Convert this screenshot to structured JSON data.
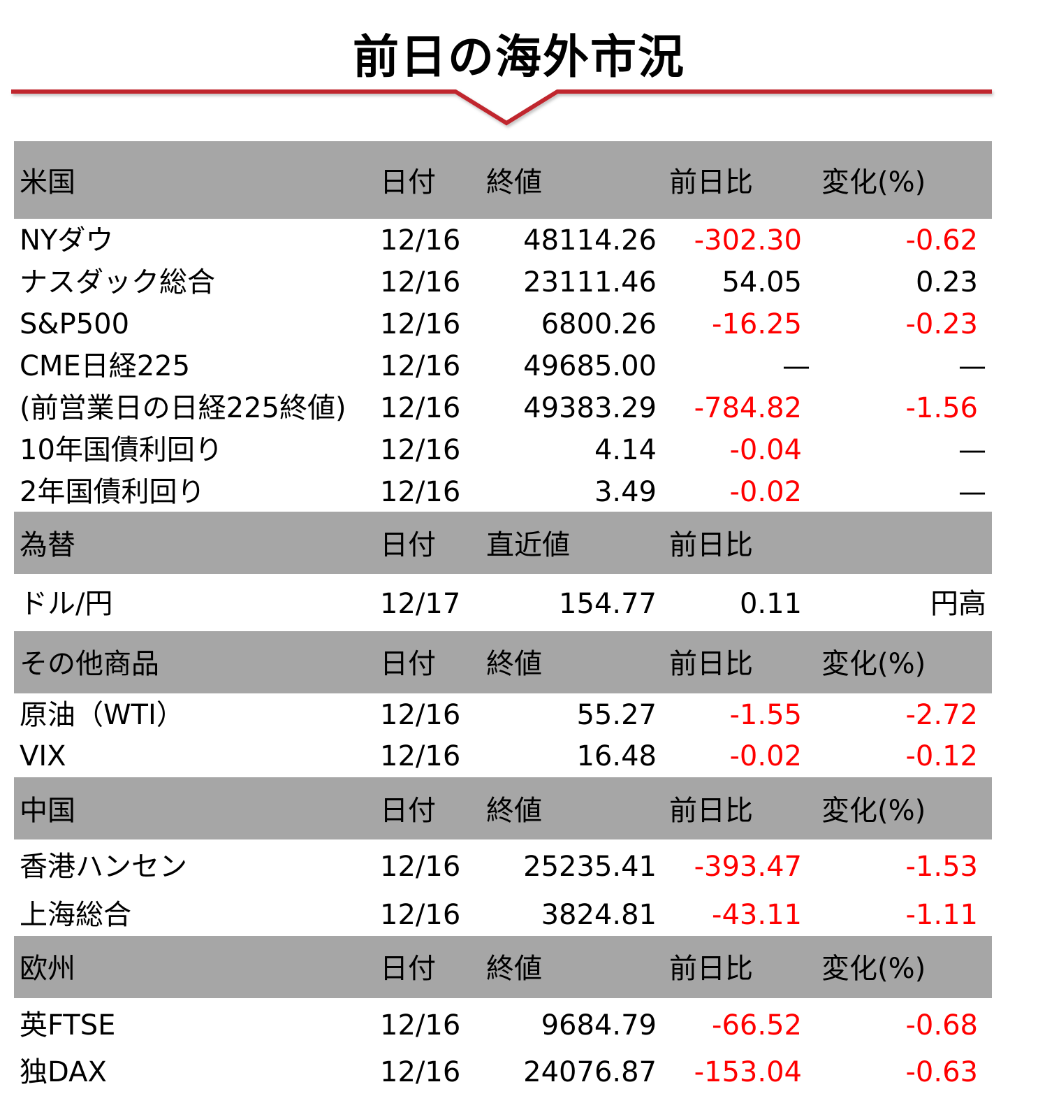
{
  "title": "前日の海外市況",
  "accent_color": "#c0282d",
  "negative_color": "#ff0000",
  "header_bg": "#a6a6a6",
  "sections": {
    "us": {
      "header": {
        "name": "米国",
        "date": "日付",
        "value": "終値",
        "change": "前日比",
        "pct": "変化(%)"
      },
      "rows": [
        {
          "name": "NYダウ",
          "date": "12/16",
          "value": "48114.26",
          "change": "-302.30",
          "pct": "-0.62"
        },
        {
          "name": "ナスダック総合",
          "date": "12/16",
          "value": "23111.46",
          "change": "54.05",
          "pct": "0.23"
        },
        {
          "name": "S&P500",
          "date": "12/16",
          "value": "6800.26",
          "change": "-16.25",
          "pct": "-0.23"
        },
        {
          "name": "CME日経225",
          "date": "12/16",
          "value": "49685.00",
          "change": "—",
          "pct": "—"
        },
        {
          "name": "(前営業日の日経225終値)",
          "date": "12/16",
          "value": "49383.29",
          "change": "-784.82",
          "pct": "-1.56"
        },
        {
          "name": "10年国債利回り",
          "date": "12/16",
          "value": "4.14",
          "change": "-0.04",
          "pct": "—"
        },
        {
          "name": "2年国債利回り",
          "date": "12/16",
          "value": "3.49",
          "change": "-0.02",
          "pct": "—"
        }
      ]
    },
    "fx": {
      "header": {
        "name": "為替",
        "date": "日付",
        "value": "直近値",
        "change": "前日比"
      },
      "rows": [
        {
          "name": "ドル/円",
          "date": "12/17",
          "value": "154.77",
          "change": "0.11",
          "pct": "円高"
        }
      ]
    },
    "commodities": {
      "header": {
        "name": "その他商品",
        "date": "日付",
        "value": "終値",
        "change": "前日比",
        "pct": "変化(%)"
      },
      "rows": [
        {
          "name": "原油（WTI）",
          "date": "12/16",
          "value": "55.27",
          "change": "-1.55",
          "pct": "-2.72"
        },
        {
          "name": "VIX",
          "date": "12/16",
          "value": "16.48",
          "change": "-0.02",
          "pct": "-0.12"
        }
      ]
    },
    "china": {
      "header": {
        "name": "中国",
        "date": "日付",
        "value": "終値",
        "change": "前日比",
        "pct": "変化(%)"
      },
      "rows": [
        {
          "name": "香港ハンセン",
          "date": "12/16",
          "value": "25235.41",
          "change": "-393.47",
          "pct": "-1.53"
        },
        {
          "name": "上海総合",
          "date": "12/16",
          "value": "3824.81",
          "change": "-43.11",
          "pct": "-1.11"
        }
      ]
    },
    "europe": {
      "header": {
        "name": "欧州",
        "date": "日付",
        "value": "終値",
        "change": "前日比",
        "pct": "変化(%)"
      },
      "rows": [
        {
          "name": "英FTSE",
          "date": "12/16",
          "value": "9684.79",
          "change": "-66.52",
          "pct": "-0.68"
        },
        {
          "name": "独DAX",
          "date": "12/16",
          "value": "24076.87",
          "change": "-153.04",
          "pct": "-0.63"
        }
      ]
    }
  }
}
